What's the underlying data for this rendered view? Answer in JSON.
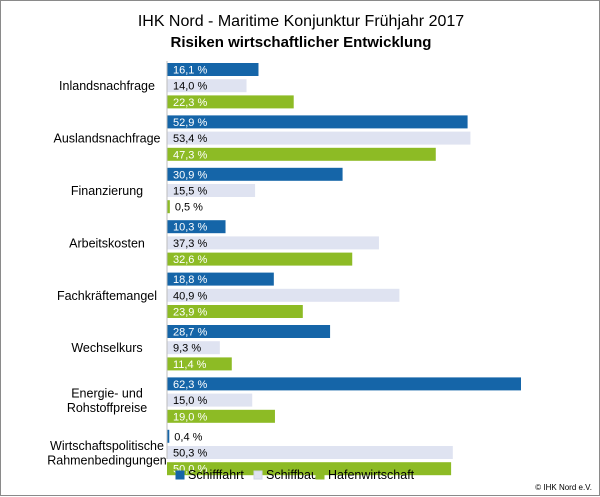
{
  "chart_data": {
    "type": "bar",
    "orientation": "horizontal",
    "title": "IHK Nord - Maritime Konjunktur Frühjahr 2017",
    "subtitle": "Risiken wirtschaftlicher Entwicklung",
    "categories": [
      "Inlandsnachfrage",
      "Auslandsnachfrage",
      "Finanzierung",
      "Arbeitskosten",
      "Fachkräftemangel",
      "Wechselkurs",
      "Energie- und Rohstoffpreise",
      "Wirtschaftspolitische Rahmenbedingungen"
    ],
    "series": [
      {
        "name": "Schifffahrt",
        "color": "#1565a8",
        "values": [
          16.1,
          52.9,
          30.9,
          10.3,
          18.8,
          28.7,
          62.3,
          0.4
        ],
        "labels": [
          "16,1 %",
          "52,9 %",
          "30,9 %",
          "10,3 %",
          "18,8 %",
          "28,7 %",
          "62,3 %",
          "0,4 %"
        ]
      },
      {
        "name": "Schiffbau",
        "color": "#dfe3f1",
        "values": [
          14.0,
          53.4,
          15.5,
          37.3,
          40.9,
          9.3,
          15.0,
          50.3
        ],
        "labels": [
          "14,0 %",
          "53,4 %",
          "15,5 %",
          "37,3 %",
          "40,9 %",
          "9,3 %",
          "15,0 %",
          "50,3 %"
        ]
      },
      {
        "name": "Hafenwirtschaft",
        "color": "#8dbb25",
        "values": [
          22.3,
          47.3,
          0.5,
          32.6,
          23.9,
          11.4,
          19.0,
          50.0
        ],
        "labels": [
          "22,3 %",
          "47,3 %",
          "0,5 %",
          "32,6 %",
          "23,9 %",
          "11,4 %",
          "19,0 %",
          "50,0 %"
        ]
      }
    ],
    "xlim": [
      0,
      62.3
    ],
    "grid": false,
    "legend_position": "bottom"
  },
  "credit": "© IHK Nord e.V."
}
